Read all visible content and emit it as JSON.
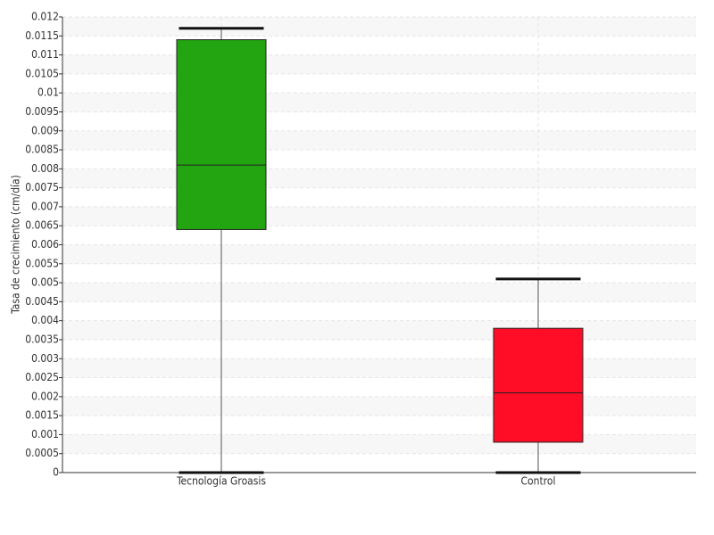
{
  "chart_data": {
    "type": "box",
    "y_label": "Tasa de crecimiento (cm/día)",
    "categories": [
      "Tecnología Groasis",
      "Control"
    ],
    "boxes": [
      {
        "min": 0,
        "q1": 0.0064,
        "median": 0.0081,
        "q3": 0.0114,
        "max": 0.0117,
        "color": "#22a511"
      },
      {
        "min": 0,
        "q1": 0.0008,
        "median": 0.0021,
        "q3": 0.0038,
        "max": 0.0051,
        "color": "#ff0d27"
      }
    ],
    "ylim": [
      0,
      0.012
    ],
    "yticks": [
      0,
      0.0005,
      0.001,
      0.0015,
      0.002,
      0.0025,
      0.003,
      0.0035,
      0.004,
      0.0045,
      0.005,
      0.0055,
      0.006,
      0.0065,
      0.007,
      0.0075,
      0.008,
      0.0085,
      0.009,
      0.0095,
      0.01,
      0.0105,
      0.011,
      0.0115,
      0.012
    ],
    "grid": true
  }
}
